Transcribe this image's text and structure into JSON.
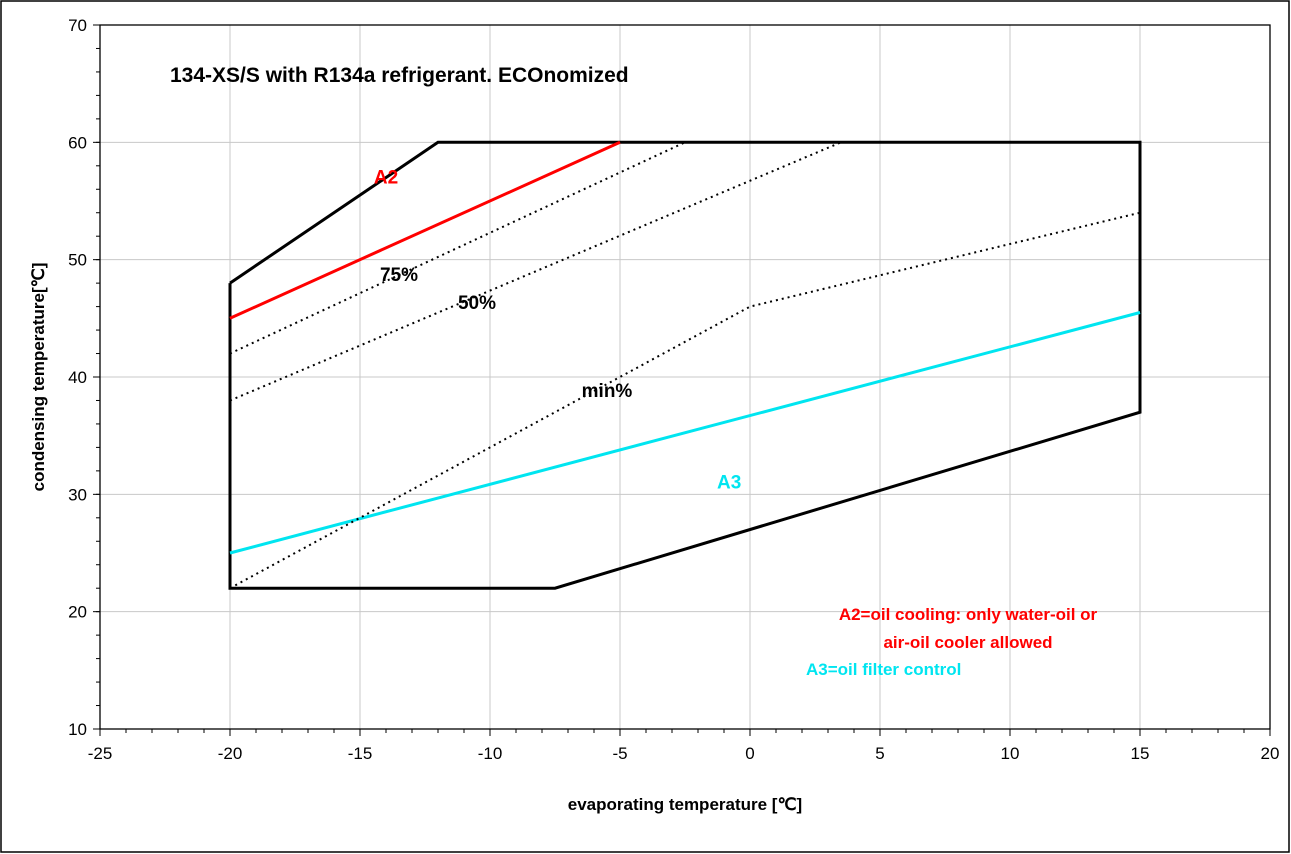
{
  "chart_data": {
    "type": "line",
    "title": "134-XS/S with R134a refrigerant. ECOnomized",
    "xlabel": "evaporating temperature [℃]",
    "ylabel": "condensing temperature[℃]",
    "xlim": [
      -25,
      20
    ],
    "ylim": [
      10,
      70
    ],
    "x_ticks": [
      "-25",
      "-20",
      "-15",
      "-10",
      "-5",
      "0",
      "5",
      "10",
      "15",
      "20"
    ],
    "y_ticks": [
      "10",
      "20",
      "30",
      "40",
      "50",
      "60",
      "70"
    ],
    "grid": true,
    "series": [
      {
        "key": "envelope",
        "style": "solid-thick",
        "color": "#000000",
        "x": [
          -20,
          -12,
          15,
          15,
          -7.5,
          -20,
          -20
        ],
        "y": [
          48,
          60,
          60,
          37,
          22,
          22,
          48
        ]
      },
      {
        "key": "A2",
        "style": "solid",
        "color": "#ff0000",
        "x": [
          -20,
          -5
        ],
        "y": [
          45,
          60
        ]
      },
      {
        "key": "A3",
        "style": "solid",
        "color": "#00e5f0",
        "x": [
          -20,
          15
        ],
        "y": [
          25,
          45.5
        ]
      },
      {
        "key": "75%",
        "style": "dotted",
        "color": "#000000",
        "x": [
          -20,
          -2.5
        ],
        "y": [
          42,
          60
        ]
      },
      {
        "key": "50%",
        "style": "dotted",
        "color": "#000000",
        "x": [
          -20,
          3.5
        ],
        "y": [
          38,
          60
        ]
      },
      {
        "key": "min%",
        "style": "dash-dot",
        "color": "#000000",
        "x": [
          -20,
          0,
          15
        ],
        "y": [
          22,
          46,
          54
        ]
      }
    ],
    "annotations": [
      {
        "text": "A2",
        "x": -14,
        "y": 56.5,
        "color": "#ff0000"
      },
      {
        "text": "75%",
        "x": -13.5,
        "y": 48.2,
        "color": "#000000"
      },
      {
        "text": "50%",
        "x": -10.5,
        "y": 45.8,
        "color": "#000000"
      },
      {
        "text": "min%",
        "x": -5.5,
        "y": 38.3,
        "color": "#000000"
      },
      {
        "text": "A3",
        "x": -0.8,
        "y": 30.5,
        "color": "#00e5f0"
      }
    ],
    "legend_notes": [
      {
        "text": "A2=oil cooling: only water-oil or",
        "color": "#ff0000"
      },
      {
        "text": "air-oil cooler allowed",
        "color": "#ff0000"
      },
      {
        "text": "A3=oil filter control",
        "color": "#00e5f0"
      }
    ]
  }
}
